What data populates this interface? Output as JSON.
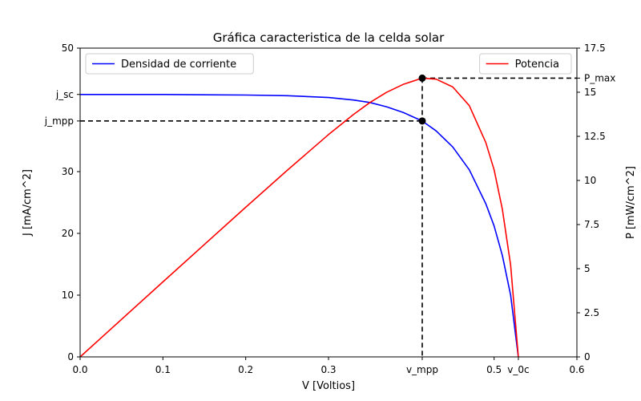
{
  "chart_data": {
    "type": "line",
    "title": "Gráfica caracteristica de la celda solar",
    "xlabel": "V [Voltios]",
    "ylabel_left": "J [mA/cm^2]",
    "ylabel_right": "P [mW/cm^2]",
    "xlim": [
      0,
      0.6
    ],
    "ylim_left": [
      0,
      50
    ],
    "ylim_right": [
      0,
      17.5
    ],
    "grid": false,
    "x_ticks": [
      {
        "value": 0.0,
        "label": "0.0"
      },
      {
        "value": 0.1,
        "label": "0.1"
      },
      {
        "value": 0.2,
        "label": "0.2"
      },
      {
        "value": 0.3,
        "label": "0.3"
      },
      {
        "value": 0.4132,
        "label": "v_mpp"
      },
      {
        "value": 0.5,
        "label": "0.5"
      },
      {
        "value": 0.5293,
        "label": "v_0c"
      },
      {
        "value": 0.6,
        "label": "0.6"
      }
    ],
    "y_ticks_left": [
      {
        "value": 0,
        "label": "0"
      },
      {
        "value": 10,
        "label": "10"
      },
      {
        "value": 20,
        "label": "20"
      },
      {
        "value": 30,
        "label": "30"
      },
      {
        "value": 38.2,
        "label": "j_mpp"
      },
      {
        "value": 42.5,
        "label": "j_sc"
      },
      {
        "value": 50,
        "label": "50"
      }
    ],
    "y_ticks_right": [
      {
        "value": 0,
        "label": "0"
      },
      {
        "value": 2.5,
        "label": "2.5"
      },
      {
        "value": 5,
        "label": "5"
      },
      {
        "value": 7.5,
        "label": "7.5"
      },
      {
        "value": 10,
        "label": "10"
      },
      {
        "value": 12.5,
        "label": "12.5"
      },
      {
        "value": 15,
        "label": "15"
      },
      {
        "value": 15.8,
        "label": "P_max"
      },
      {
        "value": 17.5,
        "label": "17.5"
      }
    ],
    "series": [
      {
        "name": "Densidad de corriente",
        "axis": "left",
        "color": "#0000ff",
        "x": [
          0.0,
          0.1,
          0.2,
          0.25,
          0.3,
          0.33,
          0.35,
          0.37,
          0.39,
          0.4132,
          0.43,
          0.45,
          0.47,
          0.49,
          0.5,
          0.51,
          0.52,
          0.5293
        ],
        "y": [
          42.5,
          42.5,
          42.4,
          42.3,
          42.0,
          41.6,
          41.2,
          40.5,
          39.6,
          38.2,
          36.6,
          34.0,
          30.3,
          24.8,
          21.2,
          16.4,
          10.0,
          0.0
        ]
      },
      {
        "name": "Potencia",
        "axis": "right",
        "color": "#ff0000",
        "x": [
          0.0,
          0.1,
          0.2,
          0.25,
          0.3,
          0.33,
          0.35,
          0.37,
          0.39,
          0.4132,
          0.43,
          0.45,
          0.47,
          0.49,
          0.5,
          0.51,
          0.52,
          0.5293
        ],
        "y": [
          0.0,
          4.25,
          8.48,
          10.57,
          12.6,
          13.73,
          14.42,
          14.99,
          15.44,
          15.8,
          15.74,
          15.3,
          14.24,
          12.15,
          10.6,
          8.36,
          5.2,
          0.0
        ]
      }
    ],
    "reference_lines": [
      {
        "kind": "horizontal",
        "axis": "left",
        "y": 38.2,
        "x_from": 0.0,
        "x_to": 0.4132,
        "style": "dashed",
        "color": "#000000"
      },
      {
        "kind": "vertical",
        "x": 0.4132,
        "style": "dashed",
        "color": "#000000"
      },
      {
        "kind": "horizontal",
        "axis": "right",
        "y": 15.8,
        "x_from": 0.4132,
        "x_to": 0.6,
        "style": "dashed",
        "color": "#000000"
      }
    ],
    "points": [
      {
        "axis": "left",
        "x": 0.4132,
        "y": 38.2,
        "color": "#000000"
      },
      {
        "axis": "right",
        "x": 0.4132,
        "y": 15.8,
        "color": "#000000"
      }
    ],
    "legends": [
      {
        "label": "Densidad de corriente",
        "color": "#0000ff",
        "placement": "upper-left"
      },
      {
        "label": "Potencia",
        "color": "#ff0000",
        "placement": "upper-right"
      }
    ]
  }
}
